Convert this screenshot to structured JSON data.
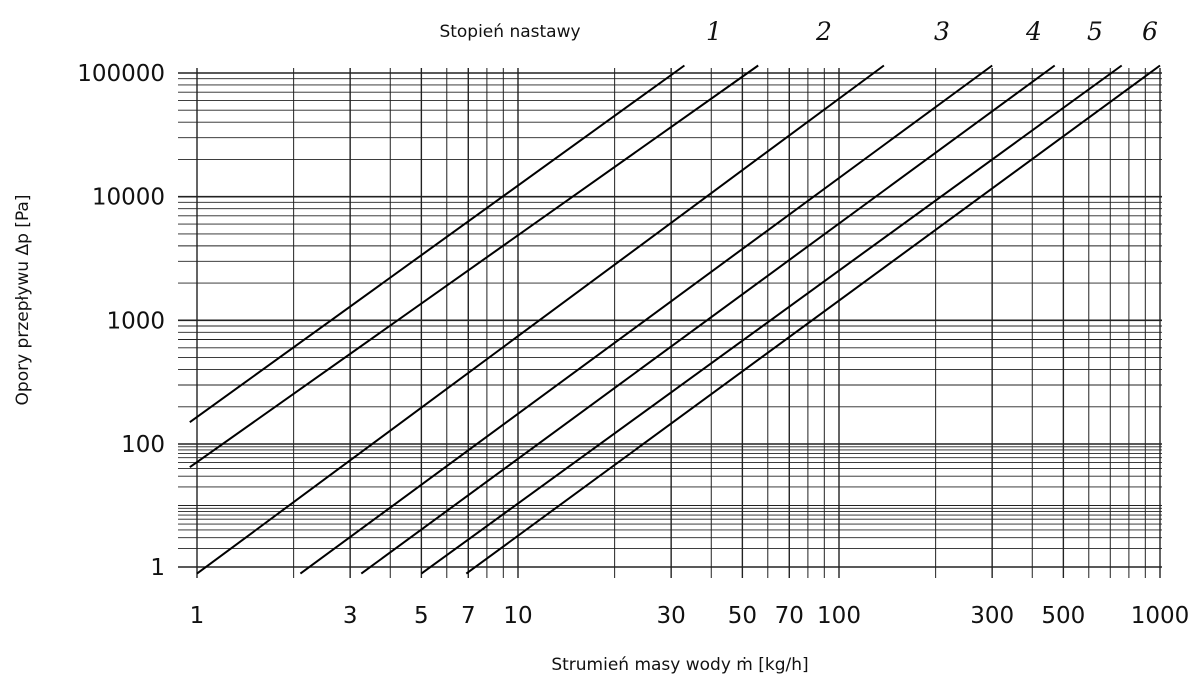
{
  "chart_data": {
    "type": "line",
    "xscale": "log",
    "yscale": "log",
    "xlim": [
      1,
      1000
    ],
    "ylim": [
      0.5,
      110000
    ],
    "xlabel": "Strumień masy wody ṁ  [kg/h]",
    "ylabel": "Opory przepływu Δp [Pa]",
    "series_header": "Stopień nastawy",
    "x_ticks": [
      1,
      3,
      5,
      7,
      10,
      30,
      50,
      70,
      100,
      300,
      500,
      1000
    ],
    "x_tick_labels": [
      "1",
      "3",
      "5",
      "7",
      "10",
      "30",
      "50",
      "70",
      "100",
      "300",
      "500",
      "1000"
    ],
    "x_minor_grid": [
      2,
      4,
      6,
      8,
      9,
      20,
      40,
      60,
      80,
      90,
      200,
      400,
      600,
      700,
      800,
      900
    ],
    "y_ticks": [
      1,
      100,
      1000,
      10000,
      100000
    ],
    "y_tick_labels": [
      "1",
      "100",
      "1000",
      "10000",
      "100000"
    ],
    "grid": true,
    "series": [
      {
        "label": "",
        "x": [
          0.95,
          33
        ],
        "y": [
          150,
          115000
        ]
      },
      {
        "label": "1",
        "x": [
          0.95,
          56
        ],
        "y": [
          42,
          115000
        ]
      },
      {
        "label": "2",
        "x": [
          1.0,
          138
        ],
        "y": [
          0.78,
          115000
        ]
      },
      {
        "label": "3",
        "x": [
          2.1,
          300
        ],
        "y": [
          0.78,
          115000
        ]
      },
      {
        "label": "4",
        "x": [
          3.25,
          470
        ],
        "y": [
          0.78,
          115000
        ]
      },
      {
        "label": "5",
        "x": [
          5.0,
          760
        ],
        "y": [
          0.78,
          115000
        ]
      },
      {
        "label": "6",
        "x": [
          6.9,
          1000
        ],
        "y": [
          0.78,
          115000
        ]
      }
    ]
  }
}
